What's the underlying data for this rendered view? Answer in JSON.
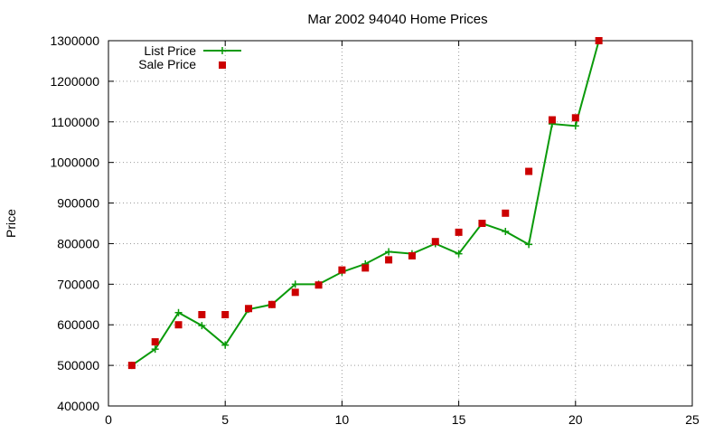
{
  "chart_data": {
    "type": "line",
    "title": "Mar 2002 94040 Home Prices",
    "xlabel": "",
    "ylabel": "Price",
    "xlim": [
      0,
      25
    ],
    "ylim": [
      400000,
      1300000
    ],
    "x_ticks": [
      0,
      5,
      10,
      15,
      20,
      25
    ],
    "y_ticks": [
      400000,
      500000,
      600000,
      700000,
      800000,
      900000,
      1000000,
      1100000,
      1200000,
      1300000
    ],
    "grid": true,
    "legend_position": "top-left",
    "series": [
      {
        "name": "List Price",
        "style": "line+cross",
        "color": "#0a9a0a",
        "x": [
          1,
          2,
          3,
          4,
          5,
          6,
          7,
          8,
          9,
          10,
          11,
          12,
          13,
          14,
          15,
          16,
          17,
          18,
          19,
          20,
          21
        ],
        "y": [
          500000,
          540000,
          630000,
          598000,
          550000,
          638000,
          650000,
          700000,
          700000,
          730000,
          750000,
          780000,
          775000,
          800000,
          775000,
          850000,
          830000,
          798000,
          1095000,
          1090000,
          1300000
        ]
      },
      {
        "name": "Sale Price",
        "style": "square",
        "color": "#cc0000",
        "x": [
          1,
          2,
          3,
          4,
          5,
          6,
          7,
          8,
          9,
          10,
          11,
          12,
          13,
          14,
          15,
          16,
          17,
          18,
          19,
          20,
          21
        ],
        "y": [
          500000,
          558000,
          600000,
          625000,
          625000,
          640000,
          650000,
          680000,
          698000,
          735000,
          740000,
          760000,
          770000,
          805000,
          828000,
          850000,
          875000,
          978000,
          1105000,
          1110000,
          1300000
        ]
      }
    ]
  }
}
